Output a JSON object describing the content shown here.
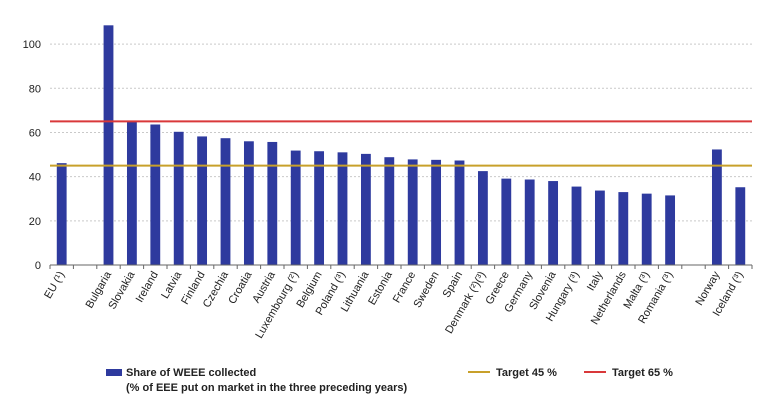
{
  "chart_data": {
    "type": "bar",
    "categories": [
      "EU (¹)",
      "",
      "Bulgaria",
      "Slovakia",
      "Ireland",
      "Latvia",
      "Finland",
      "Czechia",
      "Croatia",
      "Austria",
      "Luxembourg (²)",
      "Belgium",
      "Poland (³)",
      "Lithuania",
      "Estonia",
      "France",
      "Sweden",
      "Spain",
      "Denmark (²)(³)",
      "Greece",
      "Germany",
      "Slovenia",
      "Hungary (³)",
      "Italy",
      "Netherlands",
      "Malta (³)",
      "Romania (³)",
      "",
      "Norway",
      "Iceland (³)"
    ],
    "series": [
      {
        "name": "Share of WEEE collected",
        "name_line2": "(% of EEE put on market in the three preceding years)",
        "color": "#2e3a9e",
        "values": [
          46.1,
          null,
          108.5,
          65.0,
          63.6,
          60.3,
          58.2,
          57.4,
          56.0,
          55.7,
          51.8,
          51.5,
          51.0,
          50.3,
          48.8,
          47.8,
          47.6,
          47.3,
          42.5,
          39.1,
          38.7,
          38.0,
          35.5,
          33.7,
          33.0,
          32.3,
          31.5,
          null,
          52.3,
          35.2
        ]
      }
    ],
    "reference_lines": [
      {
        "name": "Target 45 %",
        "value": 45,
        "color": "#c8a02a"
      },
      {
        "name": "Target 65 %",
        "value": 65,
        "color": "#d9383a"
      }
    ],
    "ylim": [
      0,
      110
    ],
    "yticks": [
      "0",
      "20",
      "40",
      "60",
      "80",
      "100"
    ],
    "ytick_values": [
      0,
      20,
      40,
      60,
      80,
      100
    ],
    "grid": true,
    "legend_position": "bottom",
    "title": "",
    "xlabel": "",
    "ylabel": ""
  }
}
